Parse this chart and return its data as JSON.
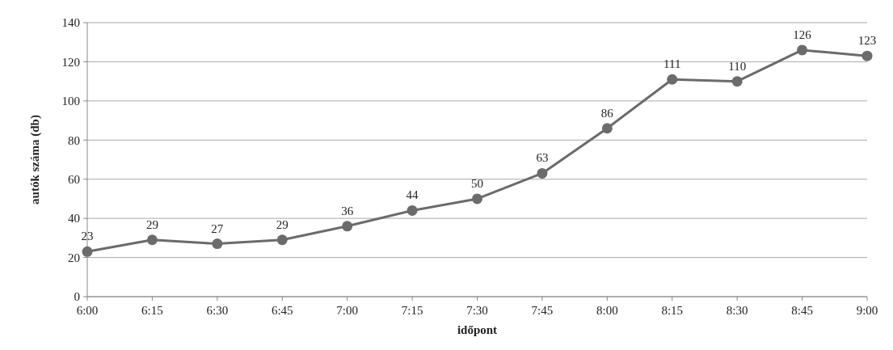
{
  "chart_data": {
    "type": "line",
    "xlabel": "időpont",
    "ylabel": "autók száma (db)",
    "categories": [
      "6:00",
      "6:15",
      "6:30",
      "6:45",
      "7:00",
      "7:15",
      "7:30",
      "7:45",
      "8:00",
      "8:15",
      "8:30",
      "8:45",
      "9:00"
    ],
    "series": [
      {
        "color": "#6b6b6b",
        "values": [
          23,
          29,
          27,
          29,
          36,
          44,
          50,
          63,
          86,
          111,
          110,
          126,
          123
        ]
      }
    ],
    "ylim": [
      0,
      140
    ],
    "yticks": [
      0,
      20,
      40,
      60,
      80,
      100,
      120,
      140
    ],
    "grid": "y",
    "data_labels": true,
    "marker": "circle",
    "line_style": "solid"
  }
}
